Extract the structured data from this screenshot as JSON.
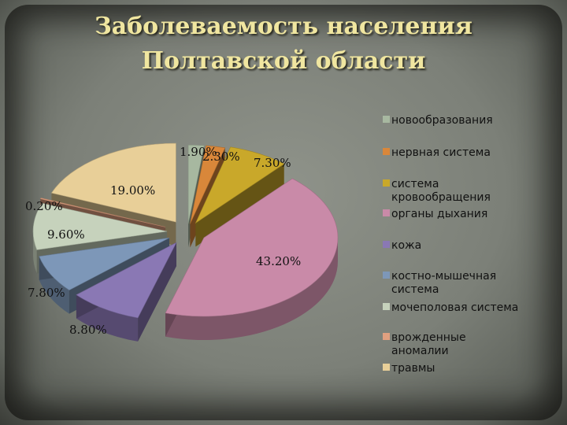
{
  "title": {
    "line1": "Заболеваемость населения",
    "line2": "Полтавской области"
  },
  "colors": {
    "title": "#f0e6a0",
    "background": "#7f837b"
  },
  "chart_data": {
    "type": "pie",
    "style": "3d-exploded",
    "legend_position": "right",
    "slices": [
      {
        "label": "новообразования",
        "value": 1.9,
        "value_label": "1.90%",
        "color": "#a7b8a0"
      },
      {
        "label": "нервная система",
        "value": 2.3,
        "value_label": "2.30%",
        "color": "#d9873a"
      },
      {
        "label": "система кровообращения",
        "value": 7.3,
        "value_label": "7.30%",
        "color": "#c9a82a"
      },
      {
        "label": "органы дыхания",
        "value": 43.2,
        "value_label": "43.20%",
        "color": "#c98aa8"
      },
      {
        "label": "кожа",
        "value": 8.8,
        "value_label": "8.80%",
        "color": "#8a78b4"
      },
      {
        "label": "костно-мышечная система",
        "value": 7.8,
        "value_label": "7.80%",
        "color": "#7d97b8"
      },
      {
        "label": "мочеполовая система",
        "value": 9.6,
        "value_label": "9.60%",
        "color": "#c6d2bc"
      },
      {
        "label": "врожденные аномалии",
        "value": 0.2,
        "value_label": "0.20%",
        "color": "#e0a080"
      },
      {
        "label": "травмы",
        "value": 19.0,
        "value_label": "19.00%",
        "color": "#e8cf98"
      }
    ]
  }
}
